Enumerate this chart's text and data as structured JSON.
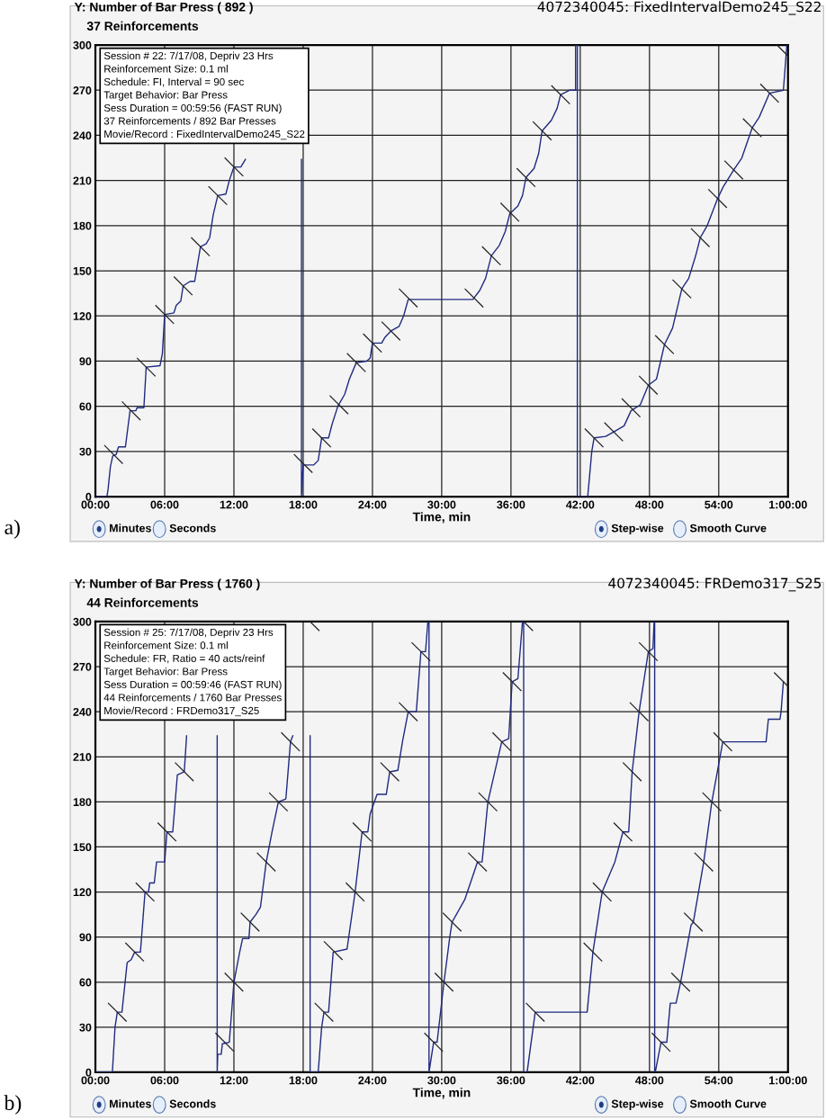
{
  "chart_data": [
    {
      "type": "line",
      "title": "Y: Number of Bar Press ( 892 )",
      "subtitle": "37 Reinforcements",
      "xlabel": "Time, min",
      "annotations": [
        "4072340045: FixedIntervalDemo245_S22",
        "Session # 22: 7/17/08, Depriv 23 Hrs\nReinforcement Size: 0.1 ml\nSchedule: FI, Interval = 90 sec\nTarget Behavior: Bar Press\nSess Duration = 00:59:56 (FAST RUN)\n37 Reinforcements / 892 Bar Presses\nMovie/Record : FixedIntervalDemo245_S22",
        "Minutes",
        "Seconds",
        "Step-wise",
        "Smooth Curve",
        "a)"
      ],
      "xlim": [
        0,
        60
      ],
      "ylim": [
        0,
        300
      ],
      "xticks": [
        {
          "value": 0,
          "label": "00:00"
        },
        {
          "value": 6,
          "label": "06:00"
        },
        {
          "value": 12,
          "label": "12:00"
        },
        {
          "value": 18,
          "label": "18:00"
        },
        {
          "value": 24,
          "label": "24:00"
        },
        {
          "value": 30,
          "label": "30:00"
        },
        {
          "value": 36,
          "label": "36:00"
        },
        {
          "value": 42,
          "label": "42:00"
        },
        {
          "value": 48,
          "label": "48:00"
        },
        {
          "value": 54,
          "label": "54:00"
        },
        {
          "value": 60,
          "label": "1:00:00"
        }
      ],
      "yticks": [
        0,
        30,
        60,
        90,
        120,
        150,
        180,
        210,
        240,
        270,
        300
      ],
      "grid": true,
      "legend": false,
      "series": [
        {
          "color": "#1f2a80",
          "x": [
            0,
            1.0,
            1.1,
            1.3,
            1.5,
            1.8,
            2.0,
            2.6,
            2.8,
            3.0,
            3.5,
            3.6,
            4.2,
            4.4,
            5.6,
            5.8,
            6.0,
            6.8,
            7.0,
            7.4,
            7.6,
            8.2,
            8.6,
            9.1,
            9.6,
            9.9,
            10.2,
            10.6,
            11.3,
            11.6,
            12.0,
            12.6,
            13.0,
            15,
            17.85,
            17.85,
            18.0,
            18.9,
            19.3,
            19.6,
            20.2,
            20.5,
            21.0,
            21.6,
            22.0,
            22.6,
            23.5,
            23.8,
            24.0,
            24.8,
            25.1,
            25.6,
            26.3,
            26.7,
            27.1,
            32.7,
            33.3,
            33.8,
            34.3,
            35.0,
            35.5,
            35.9,
            36.6,
            37.0,
            37.3,
            38.0,
            38.4,
            38.7,
            39.5,
            40.0,
            40.3,
            41.1,
            41.6,
            41.6,
            41.75,
            41.75,
            42.65,
            43.0,
            43.2,
            44.2,
            44.9,
            45.8,
            46.4,
            47.2,
            47.9,
            48.6,
            49.3,
            50.0,
            50.8,
            51.4,
            52.0,
            52.4,
            53.0,
            53.9,
            54.4,
            55.3,
            56.0,
            56.9,
            57.5,
            58.4,
            59.6,
            59.9
          ],
          "values": [
            0,
            0,
            5,
            20,
            27,
            28,
            33,
            33,
            45,
            57,
            57,
            59,
            59,
            86,
            87,
            95,
            121,
            122,
            127,
            130,
            140,
            143,
            143,
            166,
            168,
            172,
            187,
            200,
            201,
            210,
            219,
            219,
            224,
            null,
            224,
            0,
            21,
            21,
            24,
            39,
            39,
            48,
            60,
            68,
            78,
            89,
            90,
            92,
            102,
            102,
            106,
            110,
            113,
            120,
            131,
            131,
            137,
            145,
            160,
            167,
            176,
            188,
            193,
            200,
            212,
            218,
            228,
            243,
            250,
            258,
            267,
            270,
            270,
            300,
            300,
            0,
            0,
            30,
            39,
            40,
            43,
            47,
            57,
            61,
            74,
            78,
            101,
            112,
            138,
            145,
            160,
            172,
            180,
            198,
            206,
            217,
            225,
            245,
            252,
            268,
            270,
            300
          ]
        },
        {
          "type": "scatter",
          "color": "#222222",
          "x": [
            1.57,
            3.1,
            4.4,
            6.0,
            7.6,
            9.1,
            10.6,
            12.0,
            18.0,
            19.6,
            21.1,
            22.6,
            24.0,
            25.6,
            27.1,
            32.8,
            34.3,
            35.9,
            37.3,
            38.7,
            40.3,
            43.2,
            44.9,
            46.4,
            47.9,
            49.3,
            50.8,
            52.4,
            53.9,
            55.3,
            56.9,
            58.4,
            59.7
          ],
          "values": [
            28,
            57,
            86,
            121,
            140,
            166,
            200,
            219,
            22,
            39,
            61,
            89,
            102,
            110,
            132,
            132,
            160,
            189,
            212,
            243,
            267,
            39,
            43,
            59,
            74,
            101,
            138,
            172,
            198,
            217,
            245,
            268,
            295
          ]
        }
      ]
    },
    {
      "type": "line",
      "title": "Y: Number of Bar Press ( 1760 )",
      "subtitle": "44 Reinforcements",
      "xlabel": "Time, min",
      "annotations": [
        "4072340045: FRDemo317_S25",
        "Session # 25: 7/17/08, Depriv 23 Hrs\nReinforcement Size: 0.1 ml\nSchedule: FR, Ratio = 40 acts/reinf\nTarget Behavior: Bar Press\nSess Duration = 00:59:46 (FAST RUN)\n44 Reinforcements / 1760 Bar Presses\nMovie/Record : FRDemo317_S25",
        "Minutes",
        "Seconds",
        "Step-wise",
        "Smooth Curve",
        "b)"
      ],
      "xlim": [
        0,
        60
      ],
      "ylim": [
        0,
        300
      ],
      "xticks": [
        {
          "value": 0,
          "label": "00:00"
        },
        {
          "value": 6,
          "label": "06:00"
        },
        {
          "value": 12,
          "label": "12:00"
        },
        {
          "value": 18,
          "label": "18:00"
        },
        {
          "value": 24,
          "label": "24:00"
        },
        {
          "value": 30,
          "label": "30:00"
        },
        {
          "value": 36,
          "label": "36:00"
        },
        {
          "value": 42,
          "label": "42:00"
        },
        {
          "value": 48,
          "label": "48:00"
        },
        {
          "value": 54,
          "label": "54:00"
        },
        {
          "value": 60,
          "label": "1:00:00"
        }
      ],
      "yticks": [
        0,
        30,
        60,
        90,
        120,
        150,
        180,
        210,
        240,
        270,
        300
      ],
      "grid": true,
      "legend": false,
      "series": [
        {
          "color": "#1f2a80",
          "x": [
            0,
            1.47,
            1.7,
            1.9,
            2.3,
            2.75,
            3.1,
            3.4,
            3.9,
            4.3,
            4.6,
            4.7,
            5.1,
            5.3,
            6.0,
            6.2,
            6.7,
            7.1,
            7.7,
            7.9,
            9,
            10.55,
            10.55,
            10.6,
            10.9,
            11.0,
            11.6,
            12.0,
            12.5,
            12.75,
            13.3,
            13.4,
            13.9,
            14.3,
            14.8,
            15.3,
            15.85,
            16.5,
            16.9,
            17.1,
            17.8,
            18.6,
            18.6,
            19.3,
            19.6,
            19.8,
            20.2,
            20.6,
            21.8,
            22.5,
            23.1,
            23.6,
            23.8,
            24.4,
            25.2,
            25.5,
            26.2,
            26.6,
            27.1,
            27.8,
            28.2,
            28.6,
            28.8,
            28.9,
            28.9,
            29.3,
            29.6,
            30.2,
            30.7,
            30.9,
            32.0,
            33.1,
            33.5,
            34.0,
            35.2,
            35.8,
            36.1,
            36.6,
            37.0,
            37.1,
            37.1,
            37.4,
            38.1,
            42.6,
            43.1,
            43.9,
            45.0,
            45.7,
            46.2,
            46.5,
            47.1,
            47.9,
            48.3,
            48.4,
            48.45,
            48.45,
            48.5,
            49.0,
            49.5,
            49.8,
            50.3,
            50.7,
            51.6,
            51.8,
            52.7,
            53.4,
            54.35,
            58.1,
            58.3,
            59.3,
            59.4,
            59.6
          ],
          "values": [
            0,
            0,
            30,
            40,
            40,
            73,
            75,
            80,
            80,
            120,
            120,
            126,
            126,
            140,
            140,
            160,
            160,
            198,
            200,
            224,
            null,
            224,
            0,
            12,
            12,
            19,
            20,
            60,
            80,
            89,
            89,
            100,
            105,
            110,
            140,
            160,
            180,
            182,
            220,
            224,
            null,
            224,
            0,
            0,
            30,
            40,
            40,
            80,
            82,
            120,
            160,
            160,
            172,
            185,
            185,
            200,
            201,
            220,
            240,
            240,
            280,
            280,
            300,
            300,
            0,
            20,
            20,
            60,
            90,
            100,
            115,
            140,
            140,
            180,
            220,
            222,
            260,
            262,
            300,
            300,
            0,
            0,
            40,
            40,
            80,
            120,
            140,
            160,
            160,
            200,
            240,
            280,
            282,
            300,
            300,
            0,
            0,
            20,
            20,
            46,
            46,
            60,
            98,
            100,
            140,
            180,
            220,
            220,
            235,
            235,
            240,
            260
          ]
        },
        {
          "type": "scatter",
          "color": "#222222",
          "x": [
            1.9,
            3.4,
            4.3,
            6.2,
            7.7,
            11.2,
            12.0,
            13.4,
            14.8,
            15.85,
            16.9,
            18.6,
            19.8,
            20.6,
            22.5,
            23.1,
            25.5,
            27.1,
            28.2,
            29.3,
            30.2,
            30.9,
            33.1,
            34.0,
            35.2,
            36.1,
            37.1,
            38.1,
            43.1,
            43.9,
            45.7,
            46.5,
            47.1,
            47.9,
            49.0,
            50.7,
            51.8,
            52.7,
            53.4,
            54.35,
            59.6
          ],
          "values": [
            40,
            80,
            120,
            160,
            200,
            20,
            60,
            100,
            140,
            180,
            220,
            300,
            40,
            81,
            120,
            160,
            200,
            240,
            280,
            20,
            60,
            100,
            140,
            180,
            220,
            260,
            300,
            40,
            80,
            120,
            160,
            200,
            240,
            280,
            20,
            60,
            100,
            140,
            180,
            220,
            260
          ]
        }
      ]
    }
  ]
}
